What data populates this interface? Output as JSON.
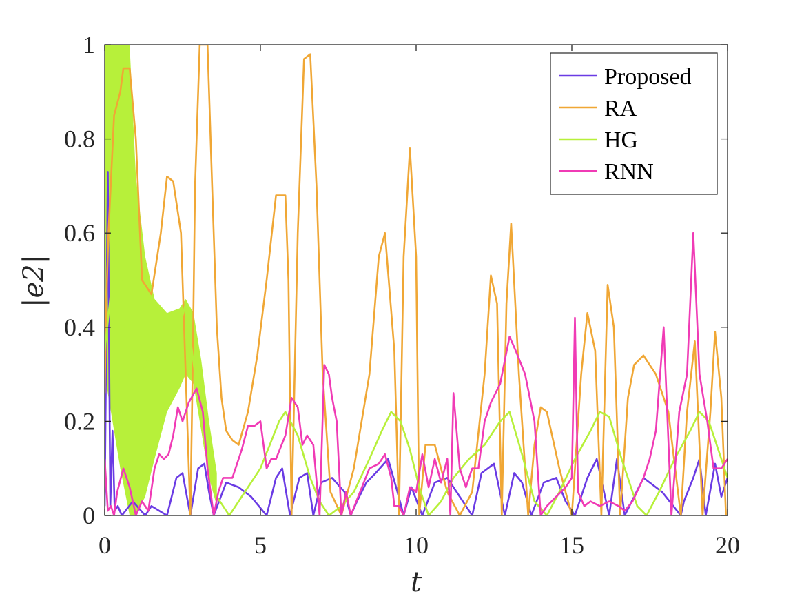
{
  "chart_data": {
    "type": "line",
    "title": "",
    "xlabel": "t",
    "ylabel": "|e2|",
    "xlim": [
      0,
      20
    ],
    "ylim": [
      0,
      1
    ],
    "grid": false,
    "legend_position": "top-right",
    "x_ticks": [
      0,
      5,
      10,
      15,
      20
    ],
    "y_ticks": [
      0,
      0.2,
      0.4,
      0.6,
      0.8,
      1
    ],
    "x_tick_labels": [
      "0",
      "5",
      "10",
      "15",
      "20"
    ],
    "y_tick_labels": [
      "0",
      "0.2",
      "0.4",
      "0.6",
      "0.8",
      "1"
    ],
    "series": [
      {
        "name": "Proposed",
        "color": "#6a3be4",
        "x": [
          0,
          0.1,
          0.18,
          0.25,
          0.32,
          0.42,
          0.55,
          0.9,
          1.3,
          1.5,
          2.0,
          2.3,
          2.5,
          2.75,
          3.0,
          3.2,
          3.35,
          3.5,
          3.9,
          4.3,
          4.7,
          5.2,
          5.5,
          5.7,
          5.95,
          6.25,
          6.5,
          6.7,
          6.95,
          7.3,
          7.7,
          7.9,
          8.1,
          8.4,
          8.7,
          9.1,
          9.4,
          9.6,
          9.85,
          10.2,
          10.6,
          11.0,
          11.4,
          11.8,
          12.1,
          12.5,
          12.85,
          13.15,
          13.4,
          13.7,
          14.1,
          14.5,
          14.8,
          15.1,
          15.5,
          15.8,
          16.2,
          16.45,
          16.7,
          17.3,
          17.9,
          18.5,
          18.6,
          18.9,
          19.1,
          19.3,
          19.6,
          19.8,
          20.0
        ],
        "y": [
          0.02,
          0.73,
          0.02,
          0.18,
          0.01,
          0.02,
          0.0,
          0.03,
          0.0,
          0.02,
          0.0,
          0.08,
          0.09,
          0.0,
          0.1,
          0.11,
          0.05,
          0.0,
          0.07,
          0.06,
          0.04,
          0.0,
          0.08,
          0.1,
          0.0,
          0.08,
          0.09,
          0.0,
          0.07,
          0.08,
          0.05,
          0.0,
          0.03,
          0.07,
          0.09,
          0.12,
          0.05,
          0.0,
          0.06,
          0.0,
          0.07,
          0.08,
          0.04,
          0.0,
          0.09,
          0.11,
          0.0,
          0.09,
          0.07,
          0.0,
          0.07,
          0.08,
          0.03,
          0.0,
          0.08,
          0.12,
          0.0,
          0.12,
          0.0,
          0.08,
          0.05,
          0.0,
          0.03,
          0.08,
          0.12,
          0.0,
          0.11,
          0.04,
          0.08
        ]
      },
      {
        "name": "RA",
        "color": "#f0a735",
        "x": [
          0,
          0.05,
          0.12,
          0.3,
          0.5,
          0.6,
          0.8,
          1.0,
          1.2,
          1.5,
          1.8,
          2.0,
          2.2,
          2.45,
          2.6,
          2.75,
          2.82,
          2.9,
          3.05,
          3.3,
          3.45,
          3.6,
          3.75,
          3.9,
          4.1,
          4.3,
          4.6,
          4.9,
          5.2,
          5.5,
          5.8,
          5.9,
          6.0,
          6.2,
          6.4,
          6.6,
          6.8,
          7.0,
          7.25,
          7.6,
          8.0,
          8.5,
          8.8,
          9.0,
          9.3,
          9.45,
          9.6,
          9.8,
          10.0,
          10.1,
          10.3,
          10.6,
          11.0,
          11.4,
          11.8,
          12.2,
          12.4,
          12.6,
          12.75,
          12.9,
          13.05,
          13.3,
          13.6,
          13.8,
          14.0,
          14.2,
          14.6,
          15.0,
          15.3,
          15.5,
          15.75,
          15.95,
          16.15,
          16.35,
          16.55,
          16.8,
          17.0,
          17.3,
          17.7,
          18.1,
          18.5,
          18.7,
          18.95,
          19.2,
          19.45,
          19.6,
          19.8,
          19.95
        ],
        "y": [
          0.26,
          0.45,
          0.6,
          0.85,
          0.9,
          0.95,
          0.95,
          0.8,
          0.5,
          0.47,
          0.6,
          0.72,
          0.71,
          0.6,
          0.3,
          0.0,
          0.3,
          0.7,
          1.0,
          1.0,
          0.7,
          0.4,
          0.25,
          0.18,
          0.16,
          0.15,
          0.22,
          0.34,
          0.5,
          0.68,
          0.68,
          0.5,
          0.0,
          0.6,
          0.97,
          0.98,
          0.7,
          0.3,
          0.05,
          0.0,
          0.1,
          0.3,
          0.55,
          0.6,
          0.35,
          0.0,
          0.55,
          0.78,
          0.55,
          0.0,
          0.15,
          0.15,
          0.05,
          0.0,
          0.05,
          0.3,
          0.51,
          0.45,
          0.0,
          0.45,
          0.62,
          0.3,
          0.0,
          0.15,
          0.23,
          0.22,
          0.1,
          0.0,
          0.3,
          0.43,
          0.35,
          0.0,
          0.49,
          0.4,
          0.0,
          0.25,
          0.32,
          0.34,
          0.3,
          0.22,
          0.0,
          0.22,
          0.37,
          0.0,
          0.22,
          0.39,
          0.25,
          0.0
        ]
      },
      {
        "name": "HG",
        "color": "#b7f03a",
        "x": [
          0,
          0.4,
          0.8,
          1.0,
          1.2,
          1.5,
          1.8,
          2.1,
          2.4,
          2.6,
          2.8,
          3.0,
          3.2,
          3.4,
          3.6,
          3.8,
          4.0,
          4.3,
          4.6,
          5.0,
          5.3,
          5.6,
          5.8,
          6.2,
          6.6,
          6.9,
          7.2,
          7.6,
          8.0,
          8.5,
          8.9,
          9.2,
          9.5,
          9.8,
          10.1,
          10.4,
          10.8,
          11.2,
          11.7,
          12.2,
          12.7,
          13.0,
          13.4,
          13.8,
          14.2,
          14.6,
          15.1,
          15.6,
          15.9,
          16.2,
          16.6,
          17.1,
          17.4,
          17.8,
          18.3,
          18.8,
          19.1,
          19.4,
          19.8,
          20.0
        ],
        "y": [
          0.35,
          0.6,
          0.3,
          0.2,
          0.3,
          0.35,
          0.38,
          0.38,
          0.4,
          0.45,
          0.35,
          0.25,
          0.15,
          0.08,
          0.04,
          0.02,
          0.0,
          0.03,
          0.06,
          0.1,
          0.15,
          0.2,
          0.22,
          0.17,
          0.08,
          0.03,
          0.0,
          0.02,
          0.05,
          0.12,
          0.18,
          0.22,
          0.2,
          0.14,
          0.06,
          0.0,
          0.03,
          0.08,
          0.12,
          0.15,
          0.2,
          0.22,
          0.13,
          0.03,
          0.0,
          0.05,
          0.12,
          0.18,
          0.22,
          0.21,
          0.12,
          0.02,
          0.0,
          0.05,
          0.12,
          0.18,
          0.22,
          0.2,
          0.12,
          0.08
        ]
      },
      {
        "name": "RNN",
        "color": "#f03bb5",
        "x": [
          0,
          0.1,
          0.2,
          0.3,
          0.4,
          0.6,
          0.8,
          1.0,
          1.2,
          1.4,
          1.6,
          1.75,
          1.9,
          2.05,
          2.2,
          2.35,
          2.5,
          2.7,
          2.95,
          3.15,
          3.3,
          3.5,
          3.65,
          3.8,
          4.1,
          4.4,
          4.6,
          4.8,
          5.0,
          5.2,
          5.35,
          5.5,
          5.8,
          6.0,
          6.2,
          6.35,
          6.5,
          6.7,
          6.9,
          7.05,
          7.2,
          7.3,
          7.45,
          7.6,
          7.75,
          7.9,
          8.2,
          8.5,
          8.8,
          9.0,
          9.2,
          9.3,
          9.45,
          9.6,
          9.8,
          10.0,
          10.2,
          10.4,
          10.6,
          10.8,
          11.0,
          11.1,
          11.2,
          11.4,
          11.6,
          11.8,
          12.0,
          12.2,
          12.4,
          12.7,
          13.0,
          13.2,
          13.5,
          13.8,
          14.0,
          14.2,
          14.5,
          14.8,
          15.0,
          15.1,
          15.2,
          15.4,
          15.6,
          15.9,
          16.2,
          16.5,
          16.7,
          16.95,
          17.3,
          17.5,
          17.7,
          17.95,
          18.2,
          18.45,
          18.7,
          18.9,
          19.1,
          19.35,
          19.55,
          19.8,
          20.0
        ],
        "y": [
          0.12,
          0.01,
          0.02,
          0.0,
          0.05,
          0.1,
          0.06,
          0.0,
          0.03,
          0.01,
          0.1,
          0.13,
          0.12,
          0.13,
          0.17,
          0.23,
          0.2,
          0.24,
          0.27,
          0.22,
          0.1,
          0.0,
          0.05,
          0.08,
          0.08,
          0.14,
          0.19,
          0.19,
          0.2,
          0.1,
          0.12,
          0.12,
          0.17,
          0.25,
          0.23,
          0.15,
          0.17,
          0.15,
          0.0,
          0.32,
          0.3,
          0.25,
          0.2,
          0.0,
          0.05,
          0.0,
          0.05,
          0.1,
          0.11,
          0.13,
          0.08,
          0.02,
          0.02,
          0.0,
          0.06,
          0.05,
          0.13,
          0.06,
          0.12,
          0.07,
          0.12,
          0.0,
          0.26,
          0.1,
          0.06,
          0.1,
          0.1,
          0.2,
          0.24,
          0.28,
          0.38,
          0.35,
          0.3,
          0.2,
          0.0,
          0.02,
          0.04,
          0.06,
          0.08,
          0.42,
          0.05,
          0.02,
          0.03,
          0.02,
          0.03,
          0.02,
          0.01,
          0.03,
          0.08,
          0.12,
          0.18,
          0.4,
          0.0,
          0.22,
          0.3,
          0.6,
          0.3,
          0.2,
          0.1,
          0.1,
          0.12
        ]
      }
    ]
  },
  "hg_transient": {
    "band_color": "#b7f03a",
    "t_end": 3.6,
    "upper": [
      [
        0.0,
        1.0
      ],
      [
        0.5,
        1.0
      ],
      [
        0.8,
        1.0
      ],
      [
        1.0,
        0.72
      ],
      [
        1.3,
        0.55
      ],
      [
        1.6,
        0.46
      ],
      [
        2.0,
        0.43
      ],
      [
        2.4,
        0.44
      ],
      [
        2.6,
        0.46
      ],
      [
        2.85,
        0.43
      ],
      [
        3.1,
        0.33
      ],
      [
        3.35,
        0.2
      ],
      [
        3.6,
        0.09
      ]
    ],
    "lower": [
      [
        0.0,
        0.3
      ],
      [
        0.5,
        0.1
      ],
      [
        0.8,
        0.0
      ],
      [
        1.0,
        0.0
      ],
      [
        1.3,
        0.04
      ],
      [
        1.6,
        0.12
      ],
      [
        2.0,
        0.22
      ],
      [
        2.4,
        0.27
      ],
      [
        2.6,
        0.3
      ],
      [
        2.85,
        0.28
      ],
      [
        3.1,
        0.18
      ],
      [
        3.35,
        0.08
      ],
      [
        3.6,
        0.02
      ]
    ]
  }
}
